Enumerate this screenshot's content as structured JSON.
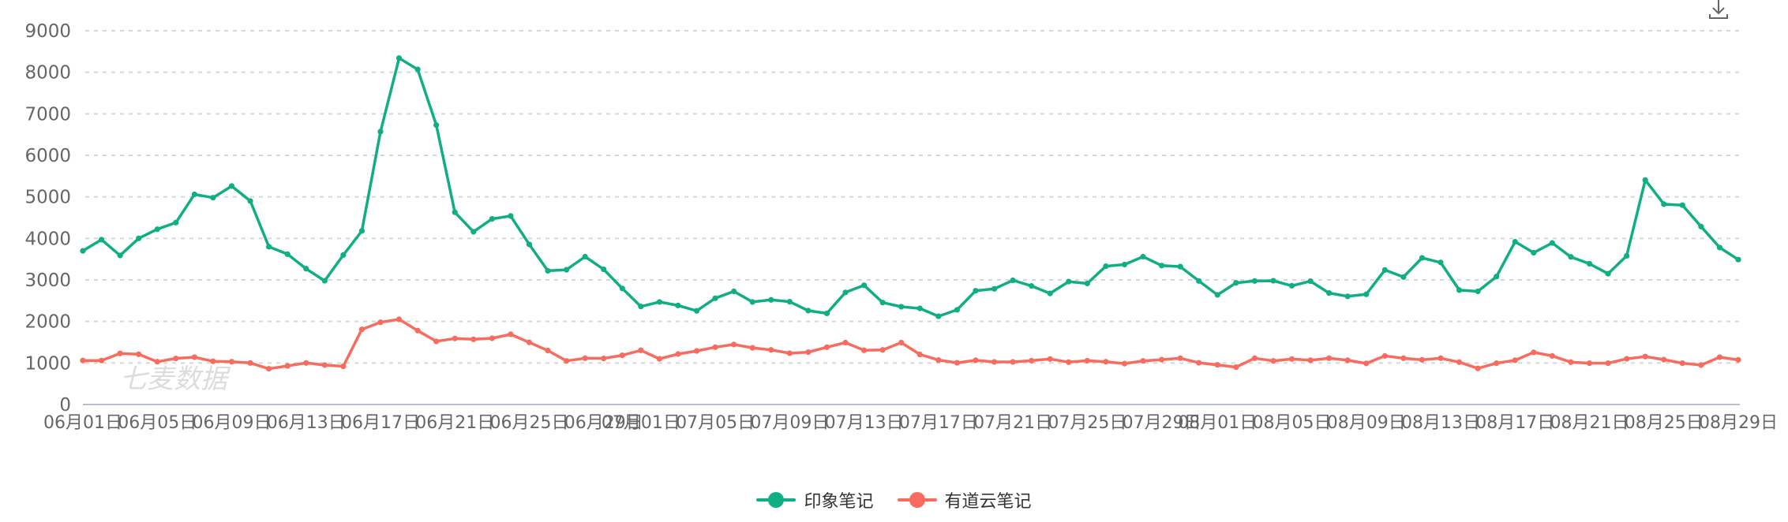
{
  "toolbar": {
    "download_icon": "download-icon"
  },
  "watermark": "七麦数据",
  "legend": [
    {
      "label": "印象笔记",
      "color": "#0fae83"
    },
    {
      "label": "有道云笔记",
      "color": "#f76c5e"
    }
  ],
  "chart_data": {
    "type": "line",
    "title": "",
    "xlabel": "",
    "ylabel": "",
    "ylim": [
      0,
      9000
    ],
    "yticks": [
      0,
      1000,
      2000,
      3000,
      4000,
      5000,
      6000,
      7000,
      8000,
      9000
    ],
    "grid": true,
    "grid_style": "dashed horizontal",
    "legend_position": "bottom-center",
    "xtick_labels": [
      "06月01日",
      "06月05日",
      "06月09日",
      "06月13日",
      "06月17日",
      "06月21日",
      "06月25日",
      "06月29日",
      "07月01日",
      "07月05日",
      "07月09日",
      "07月13日",
      "07月17日",
      "07月21日",
      "07月25日",
      "07月29日",
      "08月01日",
      "08月05日",
      "08月09日",
      "08月13日",
      "08月17日",
      "08月21日",
      "08月25日",
      "08月29日"
    ],
    "x": [
      "06-01",
      "06-02",
      "06-03",
      "06-04",
      "06-05",
      "06-06",
      "06-07",
      "06-08",
      "06-09",
      "06-10",
      "06-11",
      "06-12",
      "06-13",
      "06-14",
      "06-15",
      "06-16",
      "06-17",
      "06-18",
      "06-19",
      "06-20",
      "06-21",
      "06-22",
      "06-23",
      "06-24",
      "06-25",
      "06-26",
      "06-27",
      "06-28",
      "06-29",
      "06-30",
      "07-01",
      "07-02",
      "07-03",
      "07-04",
      "07-05",
      "07-06",
      "07-07",
      "07-08",
      "07-09",
      "07-10",
      "07-11",
      "07-12",
      "07-13",
      "07-14",
      "07-15",
      "07-16",
      "07-17",
      "07-18",
      "07-19",
      "07-20",
      "07-21",
      "07-22",
      "07-23",
      "07-24",
      "07-25",
      "07-26",
      "07-27",
      "07-28",
      "07-29",
      "07-30",
      "07-31",
      "08-01",
      "08-02",
      "08-03",
      "08-04",
      "08-05",
      "08-06",
      "08-07",
      "08-08",
      "08-09",
      "08-10",
      "08-11",
      "08-12",
      "08-13",
      "08-14",
      "08-15",
      "08-16",
      "08-17",
      "08-18",
      "08-19",
      "08-20",
      "08-21",
      "08-22",
      "08-23",
      "08-24",
      "08-25",
      "08-26",
      "08-27",
      "08-28",
      "08-29"
    ],
    "series": [
      {
        "name": "印象笔记",
        "color": "#0fae83",
        "values": [
          3700,
          3970,
          3590,
          4000,
          4220,
          4380,
          5060,
          4980,
          5260,
          4900,
          3800,
          3620,
          3270,
          2980,
          3600,
          4180,
          6570,
          8340,
          8070,
          6730,
          4630,
          4160,
          4470,
          4540,
          3855,
          3220,
          3245,
          3560,
          3255,
          2795,
          2360,
          2470,
          2385,
          2255,
          2560,
          2725,
          2470,
          2520,
          2475,
          2260,
          2195,
          2700,
          2870,
          2455,
          2355,
          2315,
          2125,
          2280,
          2740,
          2785,
          2990,
          2855,
          2675,
          2960,
          2915,
          3330,
          3370,
          3560,
          3345,
          3320,
          2975,
          2640,
          2930,
          2975,
          2980,
          2860,
          2970,
          2685,
          2605,
          2655,
          3240,
          3070,
          3530,
          3420,
          2755,
          2725,
          3080,
          3920,
          3655,
          3890,
          3555,
          3390,
          3150,
          3580,
          5405,
          4825,
          4800,
          4285,
          3780,
          3490
        ]
      },
      {
        "name": "有道云笔记",
        "color": "#f76c5e",
        "values": [
          1060,
          1060,
          1230,
          1210,
          1030,
          1110,
          1140,
          1040,
          1030,
          1000,
          860,
          930,
          1000,
          950,
          920,
          1810,
          1980,
          2050,
          1780,
          1520,
          1590,
          1570,
          1595,
          1690,
          1495,
          1300,
          1050,
          1115,
          1110,
          1185,
          1305,
          1100,
          1215,
          1290,
          1380,
          1445,
          1365,
          1315,
          1235,
          1260,
          1380,
          1490,
          1305,
          1315,
          1490,
          1205,
          1070,
          1005,
          1065,
          1025,
          1025,
          1055,
          1095,
          1020,
          1055,
          1030,
          985,
          1050,
          1080,
          1115,
          1005,
          955,
          900,
          1115,
          1050,
          1095,
          1065,
          1115,
          1065,
          990,
          1170,
          1115,
          1075,
          1115,
          1020,
          870,
          995,
          1065,
          1255,
          1170,
          1020,
          995,
          995,
          1100,
          1155,
          1080,
          995,
          950,
          1140,
          1075
        ]
      }
    ]
  }
}
